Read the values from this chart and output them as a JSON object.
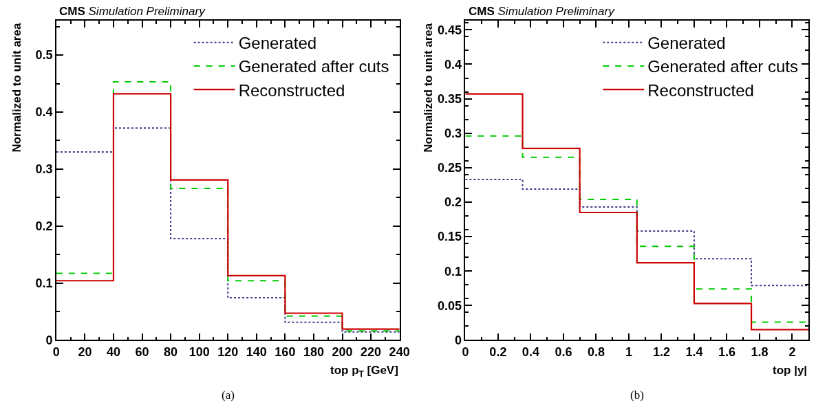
{
  "chart_data": [
    {
      "type": "histogram",
      "title": "CMS",
      "subtitle": "Simulation Preliminary",
      "xlabel": "top p$_{T}$ [GeV]",
      "ylabel": "Normalized to unit area",
      "annotations": [
        "(a)"
      ],
      "bins": [
        0,
        40,
        80,
        120,
        160,
        200,
        240
      ],
      "series": [
        {
          "name": "Generated",
          "color": "#3b3b8c",
          "line_style": "dotted",
          "values": [
            0.33,
            0.372,
            0.178,
            0.074,
            0.031,
            0.014
          ]
        },
        {
          "name": "Generated after cuts",
          "color": "#00cc00",
          "line_style": "dashed",
          "values": [
            0.117,
            0.453,
            0.266,
            0.104,
            0.042,
            0.016
          ]
        },
        {
          "name": "Reconstructed",
          "color": "#cc0000",
          "line_style": "solid",
          "values": [
            0.104,
            0.432,
            0.281,
            0.113,
            0.047,
            0.019
          ]
        }
      ],
      "xlim": [
        0,
        240
      ],
      "xticks": [
        0,
        20,
        40,
        60,
        80,
        100,
        120,
        140,
        160,
        180,
        200,
        220,
        240
      ],
      "ylim": [
        0,
        0.56
      ],
      "yticks": [
        0,
        0.1,
        0.2,
        0.3,
        0.4,
        0.5
      ],
      "legend": "top right"
    },
    {
      "type": "histogram",
      "title": "CMS",
      "subtitle": "Simulation Preliminary",
      "xlabel": "top |y|",
      "ylabel": "Normalized to unit area",
      "annotations": [
        "(b)"
      ],
      "bins": [
        0,
        0.35,
        0.7,
        1.05,
        1.4,
        1.75,
        2.1
      ],
      "series": [
        {
          "name": "Generated",
          "color": "#3b3b8c",
          "line_style": "dotted",
          "values": [
            0.233,
            0.219,
            0.193,
            0.158,
            0.118,
            0.079
          ]
        },
        {
          "name": "Generated after cuts",
          "color": "#00cc00",
          "line_style": "dashed",
          "values": [
            0.296,
            0.265,
            0.204,
            0.136,
            0.074,
            0.026
          ]
        },
        {
          "name": "Reconstructed",
          "color": "#cc0000",
          "line_style": "solid",
          "values": [
            0.357,
            0.278,
            0.185,
            0.112,
            0.053,
            0.015
          ]
        }
      ],
      "xlim": [
        0,
        2.1
      ],
      "xticks": [
        0,
        0.2,
        0.4,
        0.6,
        0.8,
        1,
        1.2,
        1.4,
        1.6,
        1.8,
        2
      ],
      "ylim": [
        0,
        0.463
      ],
      "yticks": [
        0,
        0.05,
        0.1,
        0.15,
        0.2,
        0.25,
        0.3,
        0.35,
        0.4,
        0.45
      ],
      "legend": "top right"
    }
  ]
}
